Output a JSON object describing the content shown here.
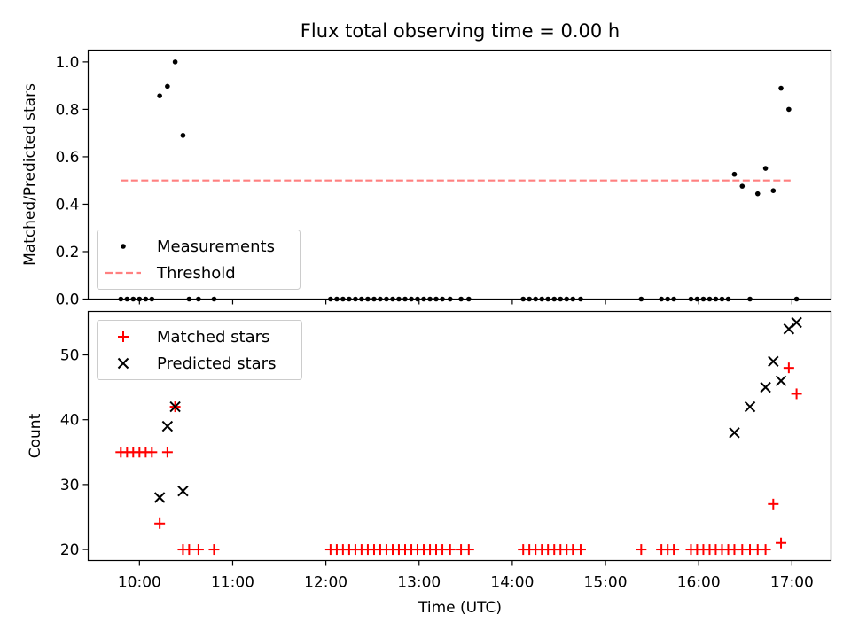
{
  "chart_data": [
    {
      "type": "scatter",
      "title": "Flux total observing time = 0.00 h",
      "xlabel": "",
      "ylabel": "Matched/Predicted stars",
      "xlim": [
        9.45,
        17.42
      ],
      "ylim": [
        0,
        1.05
      ],
      "yticks": [
        0,
        0.2,
        0.4,
        0.6,
        0.8,
        1.0
      ],
      "ytick_labels": [
        "0.0",
        "0.2",
        "0.4",
        "0.6",
        "0.8",
        "1.0"
      ],
      "legend": {
        "placement": "lower-left",
        "entries": [
          "Measurements",
          "Threshold"
        ]
      },
      "threshold": {
        "name": "Threshold",
        "y": 0.5,
        "x": [
          9.8,
          17.0
        ]
      },
      "series": [
        {
          "name": "Measurements",
          "x": [
            9.8,
            9.867,
            9.933,
            10.0,
            10.067,
            10.133,
            10.217,
            10.3,
            10.383,
            10.467,
            10.533,
            10.633,
            10.8,
            12.05,
            12.117,
            12.183,
            12.25,
            12.317,
            12.383,
            12.45,
            12.517,
            12.583,
            12.65,
            12.717,
            12.783,
            12.85,
            12.917,
            12.983,
            13.05,
            13.117,
            13.183,
            13.25,
            13.333,
            13.45,
            13.533,
            14.117,
            14.183,
            14.25,
            14.317,
            14.383,
            14.45,
            14.517,
            14.583,
            14.65,
            14.733,
            15.383,
            15.6,
            15.667,
            15.733,
            15.917,
            15.983,
            16.05,
            16.117,
            16.183,
            16.25,
            16.317,
            16.383,
            16.467,
            16.55,
            16.633,
            16.717,
            16.8,
            16.883,
            16.967,
            17.05
          ],
          "y": [
            0,
            0,
            0,
            0,
            0,
            0,
            0.857,
            0.897,
            1.0,
            0.69,
            0,
            0,
            0,
            0,
            0,
            0,
            0,
            0,
            0,
            0,
            0,
            0,
            0,
            0,
            0,
            0,
            0,
            0,
            0,
            0,
            0,
            0,
            0,
            0,
            0,
            0,
            0,
            0,
            0,
            0,
            0,
            0,
            0,
            0,
            0,
            0,
            0,
            0,
            0,
            0,
            0,
            0,
            0,
            0,
            0,
            0,
            0.526,
            0.476,
            0,
            0.444,
            0.551,
            0.457,
            0.889,
            0.8,
            0
          ]
        }
      ]
    },
    {
      "type": "scatter",
      "title": "",
      "xlabel": "Time (UTC)",
      "ylabel": "Count",
      "xlim": [
        9.45,
        17.42
      ],
      "ylim": [
        18.3,
        56.7
      ],
      "yticks": [
        20,
        30,
        40,
        50
      ],
      "ytick_labels": [
        "20",
        "30",
        "40",
        "50"
      ],
      "xticks": [
        10,
        11,
        12,
        13,
        14,
        15,
        16,
        17
      ],
      "xtick_labels": [
        "10:00",
        "11:00",
        "12:00",
        "13:00",
        "14:00",
        "15:00",
        "16:00",
        "17:00"
      ],
      "legend": {
        "placement": "top-left",
        "entries": [
          "Matched stars",
          "Predicted stars"
        ]
      },
      "series": [
        {
          "name": "Matched stars",
          "marker": "plus",
          "color": "#ff0000",
          "x": [
            9.8,
            9.867,
            9.933,
            10.0,
            10.067,
            10.133,
            10.217,
            10.3,
            10.383,
            10.467,
            10.533,
            10.633,
            10.8,
            12.05,
            12.117,
            12.183,
            12.25,
            12.317,
            12.383,
            12.45,
            12.517,
            12.583,
            12.65,
            12.717,
            12.783,
            12.85,
            12.917,
            12.983,
            13.05,
            13.117,
            13.183,
            13.25,
            13.333,
            13.45,
            13.533,
            14.117,
            14.183,
            14.25,
            14.317,
            14.383,
            14.45,
            14.517,
            14.583,
            14.65,
            14.733,
            15.383,
            15.6,
            15.667,
            15.733,
            15.917,
            15.983,
            16.05,
            16.117,
            16.183,
            16.25,
            16.317,
            16.383,
            16.467,
            16.55,
            16.633,
            16.717,
            16.8,
            16.883,
            16.967,
            17.05
          ],
          "y": [
            35,
            35,
            35,
            35,
            35,
            35,
            24,
            35,
            42,
            20,
            20,
            20,
            20,
            20,
            20,
            20,
            20,
            20,
            20,
            20,
            20,
            20,
            20,
            20,
            20,
            20,
            20,
            20,
            20,
            20,
            20,
            20,
            20,
            20,
            20,
            20,
            20,
            20,
            20,
            20,
            20,
            20,
            20,
            20,
            20,
            20,
            20,
            20,
            20,
            20,
            20,
            20,
            20,
            20,
            20,
            20,
            20,
            20,
            20,
            20,
            20,
            27,
            21,
            48,
            44
          ]
        },
        {
          "name": "Predicted stars",
          "marker": "x",
          "color": "#000000",
          "x": [
            10.217,
            10.3,
            10.383,
            10.467,
            16.383,
            16.55,
            16.717,
            16.8,
            16.883,
            16.967,
            17.05
          ],
          "y": [
            28,
            39,
            42,
            29,
            38,
            42,
            45,
            49,
            46,
            54,
            55
          ]
        }
      ]
    }
  ],
  "colors": {
    "matched": "#ff0000",
    "predicted": "#000000",
    "measurements": "#000000",
    "threshold": "#ff8080"
  }
}
